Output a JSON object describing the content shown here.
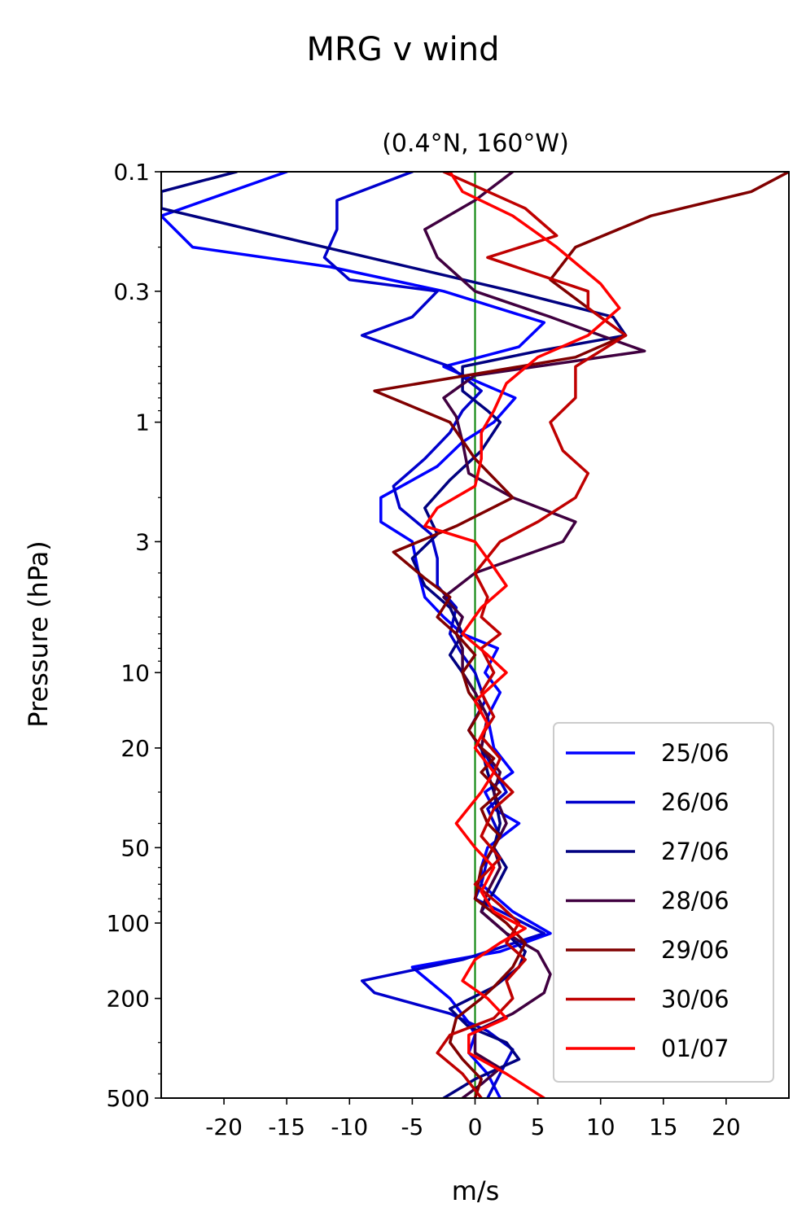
{
  "chart_data": {
    "type": "line",
    "title": "MRG v wind",
    "subtitle": "(0.4°N, 160°W)",
    "xlabel": "m/s",
    "ylabel": "Pressure (hPa)",
    "xlim": [
      -25,
      25
    ],
    "ylim": [
      500,
      0.1
    ],
    "yscale": "log",
    "y_inverted": true,
    "xticks": [
      -20,
      -15,
      -10,
      -5,
      0,
      5,
      10,
      15,
      20
    ],
    "xtick_labels": [
      "-20",
      "-15",
      "-10",
      "-5",
      "0",
      "5",
      "10",
      "15",
      "20"
    ],
    "yticks": [
      0.1,
      0.3,
      1,
      3,
      10,
      20,
      50,
      100,
      200,
      500
    ],
    "ytick_labels": [
      "0.1",
      "0.3",
      "1",
      "3",
      "10",
      "20",
      "50",
      "100",
      "200",
      "500"
    ],
    "grid": false,
    "legend_position": "bottom-right",
    "reference_line": {
      "x": 0,
      "color": "#008000"
    },
    "series": [
      {
        "name": "25/06",
        "color": "#0000ff",
        "x": [
          -15,
          -25,
          -22.5,
          -11.5,
          -2.5,
          5.5,
          3.5,
          -2.5,
          0.5,
          3.2,
          1.5,
          -1.0,
          -3.0,
          -7.5,
          -7.5,
          -5.0,
          -4.5,
          -4.0,
          -2.5,
          -1.0,
          1.8,
          0.8,
          2.0,
          1.0,
          1.5,
          3.0,
          0.8,
          1.5,
          3.5,
          1.0,
          0.5,
          0.5,
          3.0,
          6.0,
          2.0,
          -5.0,
          -2.0,
          -0.5,
          0.0,
          -0.5,
          1.0,
          2.0
        ],
        "y": [
          0.1,
          0.15,
          0.2,
          0.24,
          0.3,
          0.4,
          0.5,
          0.6,
          0.7,
          0.8,
          1.0,
          1.2,
          1.5,
          2.0,
          2.5,
          3.0,
          4.0,
          5.0,
          6.0,
          7.0,
          8.0,
          10.0,
          12.0,
          15.0,
          20.0,
          25.0,
          30.0,
          35.0,
          40.0,
          50.0,
          60.0,
          70.0,
          90.0,
          110.0,
          130.0,
          150.0,
          200.0,
          250.0,
          280.0,
          330.0,
          400.0,
          500.0
        ]
      },
      {
        "name": "26/06",
        "color": "#0000cc",
        "x": [
          -5,
          -11,
          -11,
          -12,
          -10,
          -3,
          -5,
          -9,
          -5,
          -2,
          0.5,
          -1.0,
          -2.0,
          -4.0,
          -6.5,
          -6.0,
          -3.5,
          -3.0,
          -3.0,
          -1.5,
          -2.0,
          -1.0,
          0.0,
          0.8,
          -0.5,
          1.0,
          2.5,
          1.0,
          2.0,
          1.0,
          0.5,
          0.0,
          3.0,
          5.5,
          -1.0,
          -9.0,
          -8.0,
          -2.0,
          1.0,
          3.0,
          2.0,
          1.0
        ],
        "y": [
          0.1,
          0.13,
          0.17,
          0.22,
          0.27,
          0.3,
          0.38,
          0.45,
          0.53,
          0.6,
          0.75,
          0.9,
          1.1,
          1.4,
          1.8,
          2.2,
          2.8,
          3.5,
          4.5,
          5.5,
          7.0,
          8.5,
          10.0,
          13.0,
          17.0,
          22.0,
          30.0,
          35.0,
          45.0,
          55.0,
          70.0,
          80.0,
          95.0,
          110.0,
          140.0,
          170.0,
          190.0,
          230.0,
          270.0,
          320.0,
          400.0,
          500.0
        ]
      },
      {
        "name": "27/06",
        "color": "#000080",
        "x": [
          -19,
          -25,
          -25,
          -12,
          3,
          11,
          12,
          5,
          -1,
          -1,
          1,
          2,
          0.5,
          -2,
          -4,
          -3,
          -5,
          -4,
          -2,
          -1,
          -2,
          -1,
          0,
          1,
          0.5,
          1,
          1.5,
          2,
          1.5,
          2.5,
          1.5,
          0.5,
          2.5,
          4.0,
          3.5,
          1.5,
          -2.0,
          -0.5,
          2.5,
          3.5,
          0.0,
          -2.5
        ],
        "y": [
          0.1,
          0.12,
          0.14,
          0.2,
          0.3,
          0.38,
          0.45,
          0.52,
          0.6,
          0.75,
          0.9,
          1.0,
          1.3,
          1.7,
          2.2,
          2.8,
          3.5,
          4.5,
          5.5,
          7.0,
          8.5,
          10.0,
          12.0,
          15.0,
          20.0,
          25.0,
          30.0,
          40.0,
          50.0,
          60.0,
          75.0,
          90.0,
          110.0,
          130.0,
          150.0,
          180.0,
          220.0,
          260.0,
          300.0,
          350.0,
          420.0,
          500.0
        ]
      },
      {
        "name": "28/06",
        "color": "#400040",
        "x": [
          3,
          0,
          -4,
          -3,
          0,
          6,
          10,
          13.5,
          0,
          -2.5,
          -1.5,
          -1,
          -0.5,
          3,
          8,
          7,
          0,
          -2.5,
          -1.0,
          -1.5,
          -1.0,
          -1.0,
          0.0,
          1.0,
          0.5,
          2.0,
          1.5,
          2.5,
          1.5,
          2.0,
          1.0,
          0.5,
          2.5,
          5.0,
          6.0,
          5.5,
          3.0,
          0.0,
          0.0,
          2.0,
          0.5,
          -1.0
        ],
        "y": [
          0.1,
          0.13,
          0.17,
          0.22,
          0.3,
          0.38,
          0.45,
          0.52,
          0.65,
          0.8,
          0.95,
          1.2,
          1.6,
          2.0,
          2.5,
          3.0,
          4.0,
          5.0,
          6.0,
          7.0,
          8.0,
          10.0,
          12.0,
          15.0,
          20.0,
          25.0,
          30.0,
          40.0,
          50.0,
          60.0,
          75.0,
          90.0,
          110.0,
          130.0,
          160.0,
          190.0,
          230.0,
          270.0,
          330.0,
          380.0,
          440.0,
          500.0
        ]
      },
      {
        "name": "29/06",
        "color": "#800000",
        "x": [
          25,
          22,
          14,
          8,
          6,
          9,
          12,
          8,
          -8,
          -2,
          0,
          3,
          -1.5,
          -6.5,
          -4,
          -2,
          -3,
          -1.5,
          0,
          -1,
          -0.5,
          0.5,
          -0.5,
          0.5,
          1.5,
          0.5,
          2.0,
          0.5,
          1.0,
          2.0,
          0.5,
          0.0,
          2.5,
          4.0,
          3.0,
          1.5,
          0.5,
          -1.5,
          -2.0,
          -1.0,
          0.5,
          0.0
        ],
        "y": [
          0.1,
          0.12,
          0.15,
          0.2,
          0.27,
          0.35,
          0.45,
          0.55,
          0.75,
          1.0,
          1.4,
          2.0,
          2.6,
          3.3,
          4.2,
          5.0,
          6.0,
          7.0,
          8.5,
          10.0,
          12.0,
          14.0,
          17.0,
          20.0,
          22.0,
          25.0,
          30.0,
          35.0,
          40.0,
          45.0,
          60.0,
          80.0,
          100.0,
          120.0,
          150.0,
          180.0,
          200.0,
          240.0,
          300.0,
          350.0,
          420.0,
          500.0
        ]
      },
      {
        "name": "30/06",
        "color": "#bf0000",
        "x": [
          -2.5,
          4,
          6.5,
          1,
          9,
          9,
          12,
          8,
          8,
          6,
          7,
          9,
          8,
          5,
          2,
          0,
          1,
          0.5,
          2.0,
          0.5,
          1.5,
          0.5,
          1.5,
          0.5,
          2.0,
          1.5,
          3.0,
          1.5,
          0.5,
          2.0,
          0.0,
          2.0,
          3.5,
          2.5,
          4.0,
          2.5,
          3.0,
          1.5,
          -2.0,
          -3.0,
          -1.0,
          0.5
        ],
        "y": [
          0.1,
          0.14,
          0.18,
          0.22,
          0.3,
          0.35,
          0.45,
          0.6,
          0.8,
          1.0,
          1.3,
          1.6,
          2.0,
          2.5,
          3.0,
          4.0,
          5.0,
          6.0,
          7.0,
          8.0,
          10.0,
          12.0,
          15.0,
          18.0,
          22.0,
          25.0,
          30.0,
          35.0,
          45.0,
          55.0,
          70.0,
          85.0,
          100.0,
          120.0,
          140.0,
          170.0,
          200.0,
          240.0,
          280.0,
          330.0,
          400.0,
          500.0
        ]
      },
      {
        "name": "01/07",
        "color": "#ff0000",
        "x": [
          -2,
          -1,
          3,
          6.5,
          10,
          11.5,
          9,
          5,
          2.5,
          1.5,
          0.5,
          0.5,
          0.0,
          -3.0,
          -4.0,
          0.0,
          1.5,
          2.5,
          0.5,
          -1.0,
          1.0,
          2.5,
          0.0,
          1.0,
          0.0,
          1.5,
          0.5,
          -1.5,
          0.0,
          1.5,
          0.5,
          1.5,
          4.0,
          2.0,
          0.0,
          -1.0,
          1.0,
          2.5,
          -0.5,
          -0.5,
          2.5,
          5.5
        ],
        "y": [
          0.1,
          0.12,
          0.15,
          0.2,
          0.28,
          0.35,
          0.45,
          0.55,
          0.7,
          0.9,
          1.1,
          1.4,
          1.8,
          2.2,
          2.6,
          3.0,
          3.8,
          4.5,
          5.5,
          7.0,
          8.5,
          10.0,
          13.0,
          16.0,
          20.0,
          25.0,
          30.0,
          40.0,
          50.0,
          60.0,
          75.0,
          90.0,
          105.0,
          120.0,
          140.0,
          170.0,
          200.0,
          240.0,
          280.0,
          330.0,
          400.0,
          500.0
        ]
      }
    ]
  }
}
